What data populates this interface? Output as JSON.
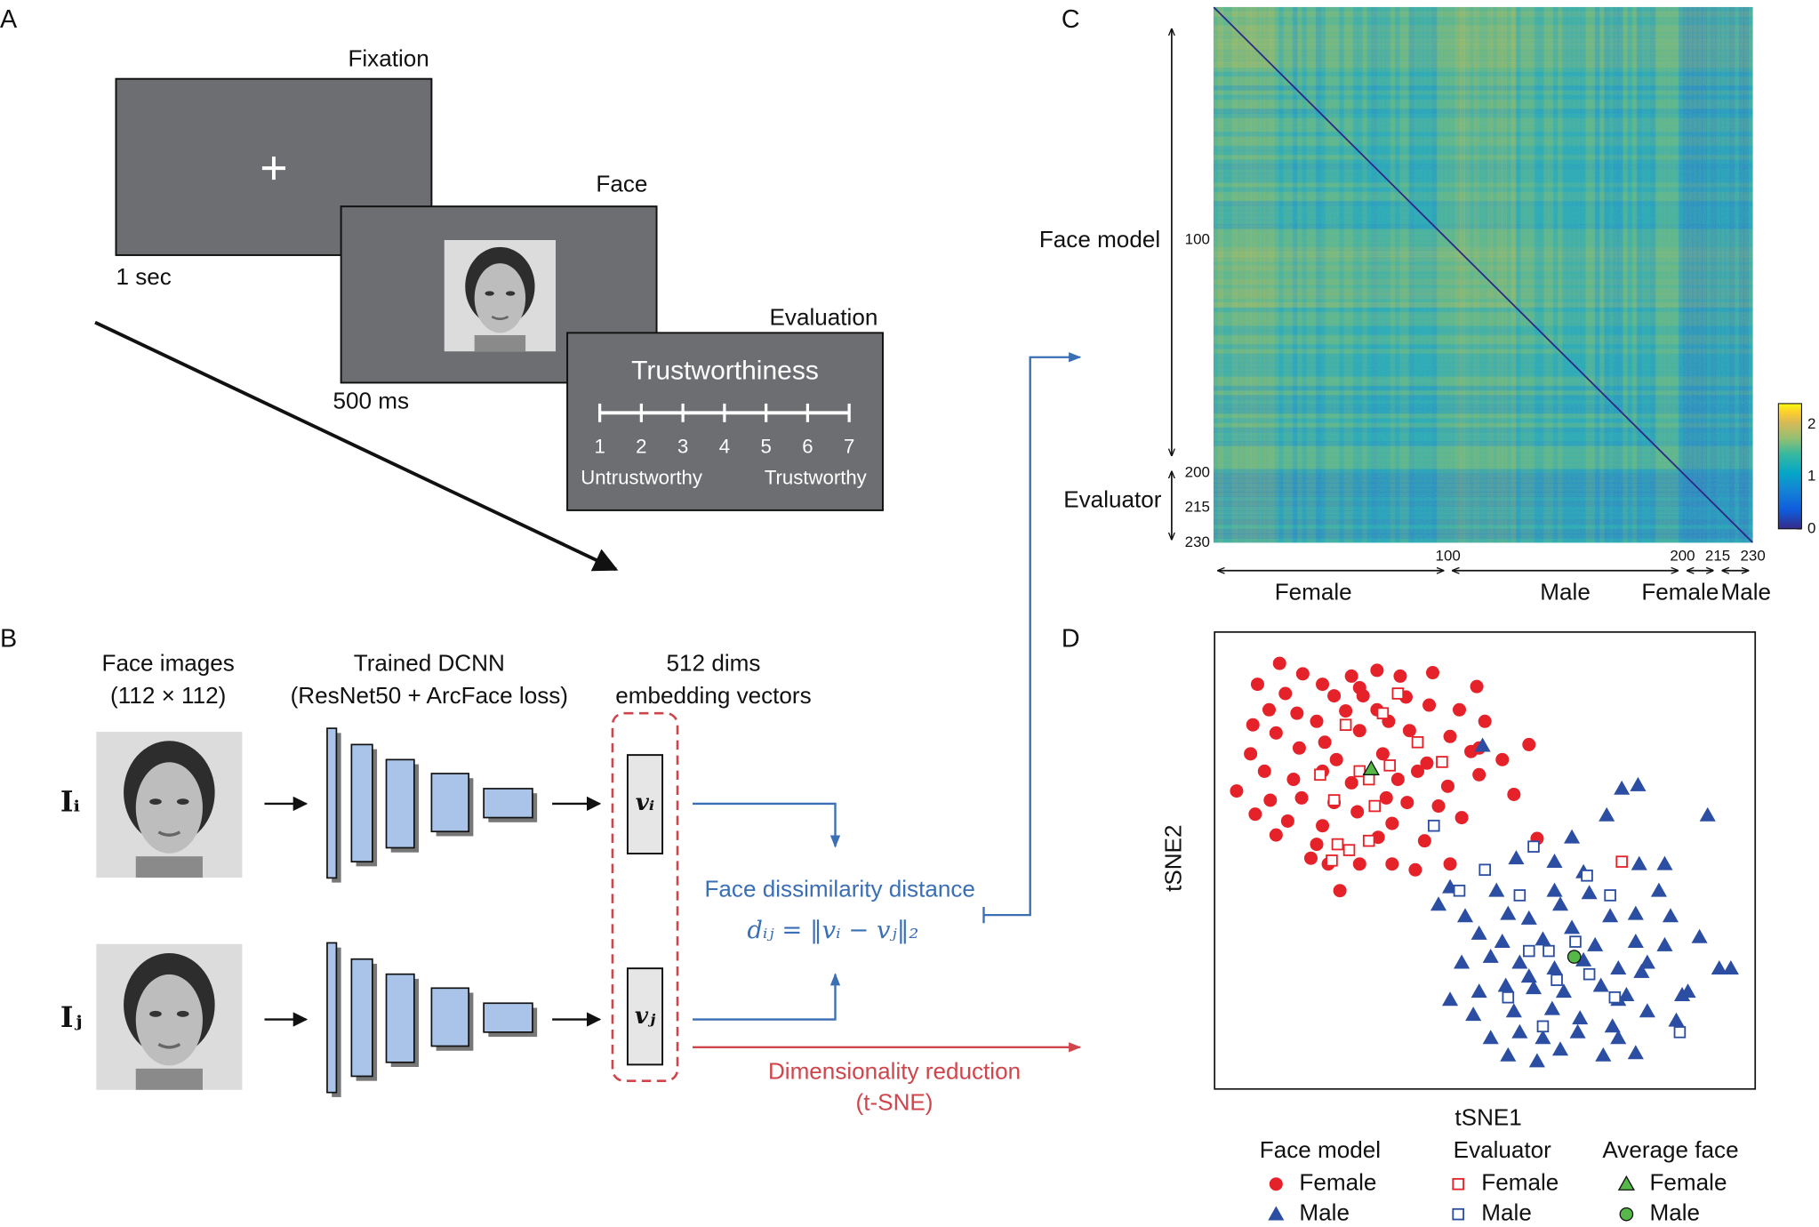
{
  "panels": {
    "A": {
      "label": "A",
      "fixation": "Fixation",
      "fixation_time": "1 sec",
      "face": "Face",
      "face_time": "500 ms",
      "evaluation": "Evaluation",
      "question": "Trustworthiness",
      "scale": [
        1,
        2,
        3,
        4,
        5,
        6,
        7
      ],
      "low": "Untrustworthy",
      "high": "Trustworthy"
    },
    "B": {
      "label": "B",
      "images_title": [
        "Face images",
        "(112 × 112)"
      ],
      "dcnn_title": [
        "Trained DCNN",
        "(ResNet50 + ArcFace loss)"
      ],
      "embed_title": [
        "512 dims",
        "embedding vectors"
      ],
      "image_i": "Iᵢ",
      "image_j": "Iⱼ",
      "vector_i": "vᵢ",
      "vector_j": "vⱼ",
      "distance_title": "Face dissimilarity distance",
      "distance_formula": "dᵢⱼ = ‖vᵢ − vⱼ‖₂",
      "reduction": [
        "Dimensionality reduction",
        "(t-SNE)"
      ]
    },
    "C": {
      "label": "C",
      "y_groups": [
        "Face model",
        "Evaluator"
      ],
      "ticks": [
        100,
        200,
        215,
        230
      ],
      "x_groups": [
        "Female",
        "Male",
        "Female",
        "Male"
      ],
      "colorbar_ticks": [
        0,
        1,
        2
      ],
      "colorbar_lim": [
        0,
        2.4
      ]
    }
  },
  "chart_data": {
    "type": "scatter",
    "label": "D",
    "xlabel": "tSNE1",
    "ylabel": "tSNE2",
    "xlim": [
      0,
      466
    ],
    "ylim": [
      0,
      394
    ],
    "legend_groups": [
      "Face model",
      "Evaluator",
      "Average face"
    ],
    "series": [
      {
        "name": "Female",
        "group": 0,
        "marker": "circle",
        "filled": true,
        "color": "#e52229",
        "x": [
          56,
          76,
          93,
          118,
          140,
          160,
          188,
          37,
          61,
          103,
          125,
          165,
          226,
          47,
          71,
          88,
          113,
          140,
          150,
          185,
          211,
          33,
          53,
          95,
          125,
          168,
          203,
          233,
          31,
          73,
          105,
          145,
          183,
          221,
          248,
          271,
          19,
          43,
          68,
          93,
          118,
          158,
          175,
          201,
          228,
          48,
          75,
          103,
          148,
          193,
          35,
          63,
          93,
          123,
          153,
          213,
          258,
          53,
          88,
          141,
          181,
          278,
          98,
          125,
          153,
          173,
          203,
          108,
          83,
          228,
          128,
          166
        ],
        "y": [
          367,
          358,
          349,
          356,
          361,
          356,
          359,
          349,
          341,
          339,
          346,
          338,
          347,
          327,
          324,
          317,
          326,
          327,
          317,
          331,
          327,
          314,
          307,
          299,
          309,
          309,
          304,
          317,
          289,
          294,
          284,
          289,
          281,
          291,
          284,
          297,
          257,
          274,
          267,
          274,
          264,
          267,
          274,
          261,
          271,
          249,
          251,
          247,
          251,
          244,
          237,
          231,
          227,
          239,
          229,
          234,
          254,
          219,
          211,
          217,
          214,
          216,
          194,
          194,
          194,
          189,
          194,
          171,
          199,
          294,
          339,
          247
        ]
      },
      {
        "name": "Male",
        "group": 0,
        "marker": "triangle",
        "filled": true,
        "color": "#2b4ea2",
        "x": [
          231,
          351,
          365,
          425,
          338,
          308,
          260,
          293,
          318,
          366,
          388,
          203,
          243,
          293,
          323,
          383,
          216,
          253,
          271,
          298,
          341,
          363,
          393,
          228,
          248,
          283,
          308,
          328,
          363,
          388,
          418,
          213,
          238,
          263,
          293,
          318,
          348,
          373,
          435,
          445,
          203,
          228,
          251,
          275,
          301,
          333,
          355,
          403,
          408,
          223,
          258,
          291,
          315,
          343,
          373,
          238,
          263,
          283,
          313,
          348,
          253,
          278,
          298,
          335,
          363,
          271,
          348,
          398,
          193,
          368
        ],
        "y": [
          296,
          259,
          262,
          236,
          236,
          217,
          199,
          196,
          187,
          194,
          194,
          174,
          171,
          171,
          169,
          171,
          149,
          151,
          147,
          159,
          149,
          151,
          149,
          134,
          127,
          129,
          139,
          124,
          127,
          124,
          131,
          109,
          114,
          109,
          104,
          111,
          104,
          109,
          104,
          104,
          77,
          84,
          89,
          87,
          84,
          89,
          81,
          81,
          84,
          64,
          67,
          69,
          61,
          54,
          67,
          44,
          49,
          44,
          49,
          44,
          29,
          24,
          34,
          29,
          31,
          97,
          77,
          59,
          159,
          101
        ]
      },
      {
        "name": "Female",
        "group": 1,
        "marker": "square",
        "filled": false,
        "color": "#e52229",
        "x": [
          158,
          113,
          145,
          175,
          196,
          125,
          91,
          151,
          103,
          138,
          106,
          133,
          116,
          101,
          351,
          133
        ],
        "y": [
          341,
          314,
          324,
          299,
          282,
          274,
          271,
          279,
          249,
          244,
          211,
          214,
          206,
          197,
          196,
          267
        ]
      },
      {
        "name": "Male",
        "group": 1,
        "marker": "square",
        "filled": false,
        "color": "#2b4ea2",
        "x": [
          189,
          233,
          275,
          211,
          263,
          341,
          321,
          288,
          311,
          271,
          295,
          345,
          283,
          401,
          323,
          253
        ],
        "y": [
          227,
          189,
          209,
          171,
          167,
          167,
          184,
          119,
          127,
          119,
          94,
          79,
          54,
          49,
          99,
          79
        ]
      },
      {
        "name": "Female",
        "group": 2,
        "marker": "triangle",
        "filled": true,
        "color": "#55b848",
        "x": [
          135
        ],
        "y": [
          276
        ]
      },
      {
        "name": "Male",
        "group": 2,
        "marker": "circle",
        "filled": true,
        "color": "#55b848",
        "x": [
          310
        ],
        "y": [
          114
        ]
      }
    ]
  }
}
